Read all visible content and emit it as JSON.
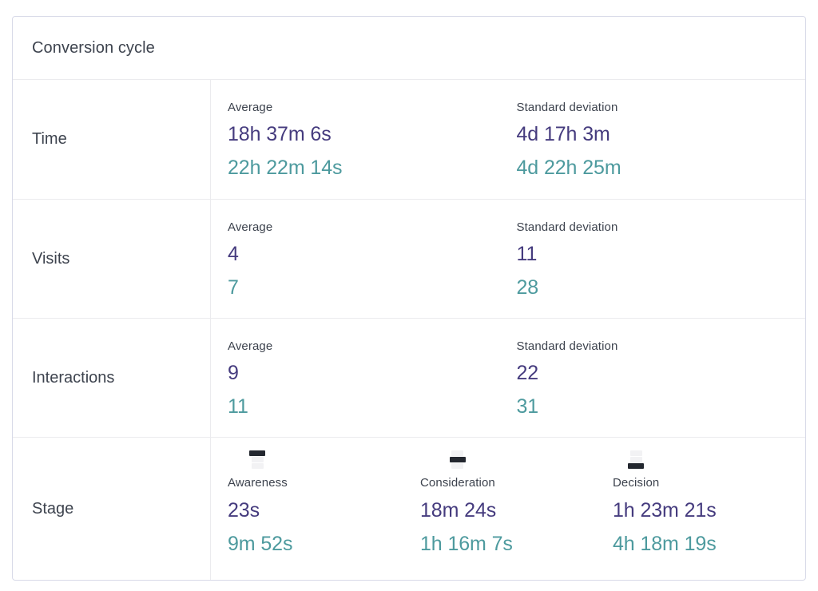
{
  "card": {
    "title": "Conversion cycle",
    "metric_rows": [
      {
        "label": "Time",
        "average": {
          "label": "Average",
          "primary": "18h 37m 6s",
          "secondary": "22h 22m 14s"
        },
        "std_dev": {
          "label": "Standard deviation",
          "primary": "4d 17h 3m",
          "secondary": "4d 22h 25m"
        }
      },
      {
        "label": "Visits",
        "average": {
          "label": "Average",
          "primary": "4",
          "secondary": "7"
        },
        "std_dev": {
          "label": "Standard deviation",
          "primary": "11",
          "secondary": "28"
        }
      },
      {
        "label": "Interactions",
        "average": {
          "label": "Average",
          "primary": "9",
          "secondary": "11"
        },
        "std_dev": {
          "label": "Standard deviation",
          "primary": "22",
          "secondary": "31"
        }
      }
    ],
    "stage_row": {
      "label": "Stage",
      "stages": [
        {
          "name": "Awareness",
          "icon": "funnel-awareness-icon",
          "active_bar": "top",
          "primary": "23s",
          "secondary": "9m 52s"
        },
        {
          "name": "Consideration",
          "icon": "funnel-consideration-icon",
          "active_bar": "middle",
          "primary": "18m 24s",
          "secondary": "1h 16m 7s"
        },
        {
          "name": "Decision",
          "icon": "funnel-decision-icon",
          "active_bar": "bottom",
          "primary": "1h 23m 21s",
          "secondary": "4h 18m 19s"
        }
      ]
    },
    "colors": {
      "primary_value": "#453b7e",
      "secondary_value": "#4d9a9e",
      "label_text": "#3d434e",
      "card_border": "#d8dae8",
      "divider": "#ebebee",
      "funnel_active": "#23272f",
      "funnel_inactive": "#f2f2f4"
    }
  }
}
